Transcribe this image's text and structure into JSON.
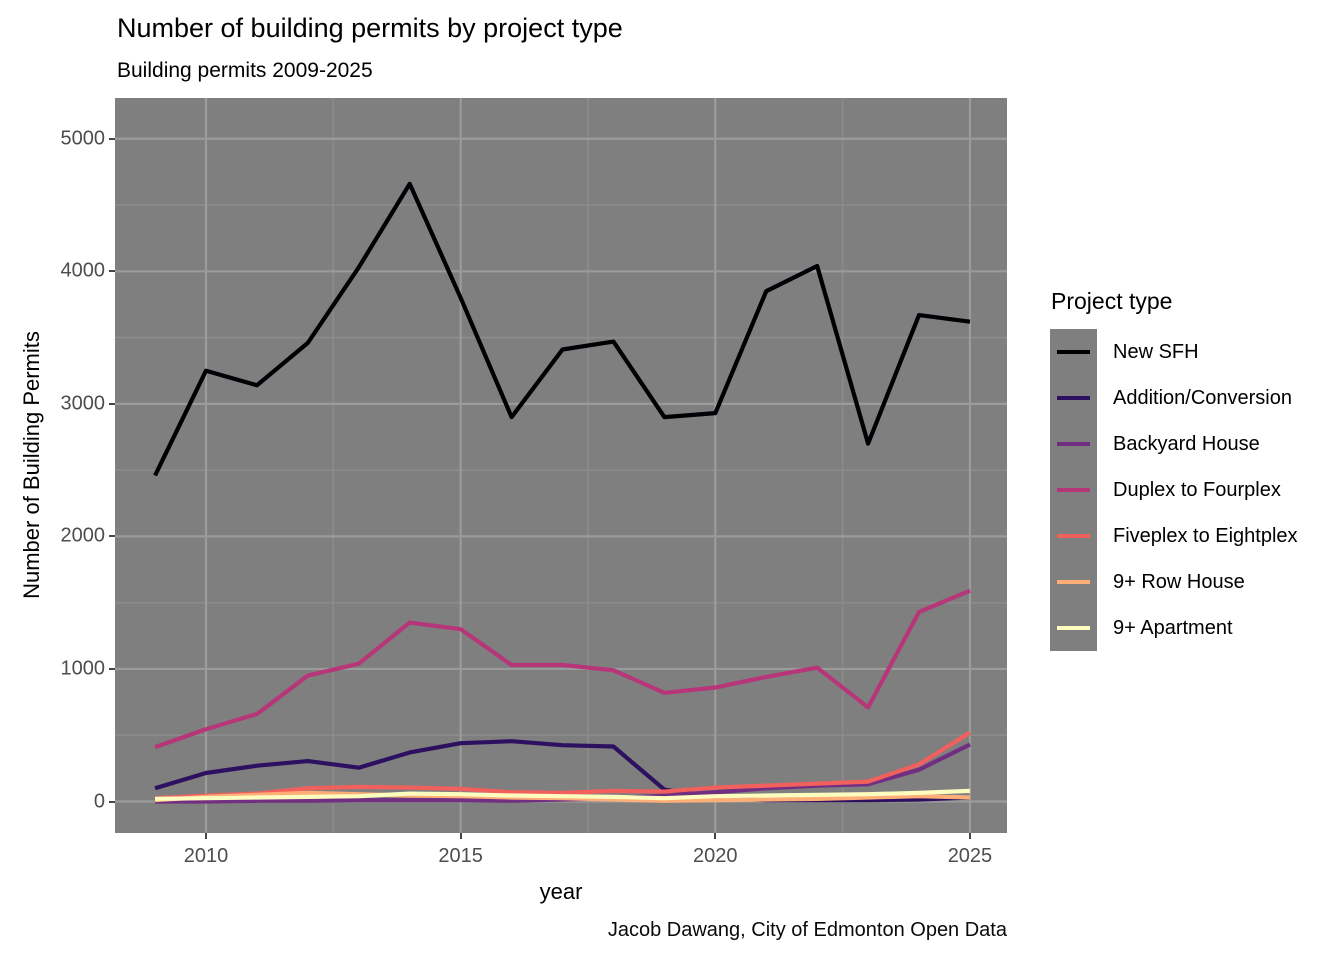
{
  "legend": {
    "title": "Project type"
  },
  "chart_data": {
    "type": "line",
    "title": "Number of building permits by project type",
    "subtitle": "Building permits 2009-2025",
    "caption": "Jacob Dawang, City of Edmonton Open Data",
    "xlabel": "year",
    "ylabel": "Number of Building Permits",
    "x": [
      2009,
      2010,
      2011,
      2012,
      2013,
      2014,
      2015,
      2016,
      2017,
      2018,
      2019,
      2020,
      2021,
      2022,
      2023,
      2024,
      2025
    ],
    "series": [
      {
        "name": "New SFH",
        "color": "#000004",
        "values": [
          2460,
          3250,
          3140,
          3460,
          4030,
          4660,
          3800,
          2900,
          3410,
          3470,
          2900,
          2930,
          3850,
          4040,
          2700,
          3670,
          3620
        ]
      },
      {
        "name": "Addition/Conversion",
        "color": "#2D1160",
        "values": [
          100,
          215,
          270,
          305,
          255,
          370,
          440,
          455,
          425,
          415,
          90,
          30,
          10,
          10,
          10,
          15,
          30
        ]
      },
      {
        "name": "Backyard House",
        "color": "#722F81",
        "values": [
          0,
          0,
          5,
          5,
          10,
          10,
          10,
          5,
          15,
          25,
          45,
          70,
          100,
          120,
          130,
          240,
          430
        ]
      },
      {
        "name": "Duplex to Fourplex",
        "color": "#B63679",
        "values": [
          410,
          545,
          660,
          950,
          1040,
          1350,
          1300,
          1030,
          1030,
          990,
          820,
          860,
          940,
          1010,
          710,
          1430,
          1590
        ]
      },
      {
        "name": "Fiveplex to Eightplex",
        "color": "#F1605D",
        "values": [
          25,
          45,
          60,
          100,
          110,
          105,
          95,
          70,
          65,
          80,
          75,
          105,
          120,
          135,
          150,
          280,
          520
        ]
      },
      {
        "name": "9+ Row House",
        "color": "#FEAF77",
        "values": [
          10,
          35,
          50,
          65,
          55,
          45,
          40,
          30,
          25,
          15,
          5,
          10,
          15,
          20,
          30,
          40,
          30
        ]
      },
      {
        "name": "9+ Apartment",
        "color": "#FCFDBF",
        "values": [
          20,
          25,
          30,
          35,
          40,
          60,
          55,
          45,
          40,
          35,
          25,
          40,
          45,
          50,
          55,
          65,
          80
        ]
      }
    ],
    "x_ticks": [
      2010,
      2015,
      2020,
      2025
    ],
    "x_minor": [
      2012.5,
      2017.5,
      2022.5
    ],
    "y_ticks": [
      0,
      1000,
      2000,
      3000,
      4000,
      5000
    ],
    "y_minor": [
      500,
      1500,
      2500,
      3500,
      4500
    ],
    "xlim": [
      2009,
      2025
    ],
    "ylim": [
      0,
      5000
    ],
    "grid": "on",
    "legend_position": "right",
    "panel_bg": "#7F7F7F",
    "grid_major_color": "#9B9B9B",
    "grid_minor_color": "#8C8C8C",
    "tick_text_color": "#4D4D4D"
  }
}
